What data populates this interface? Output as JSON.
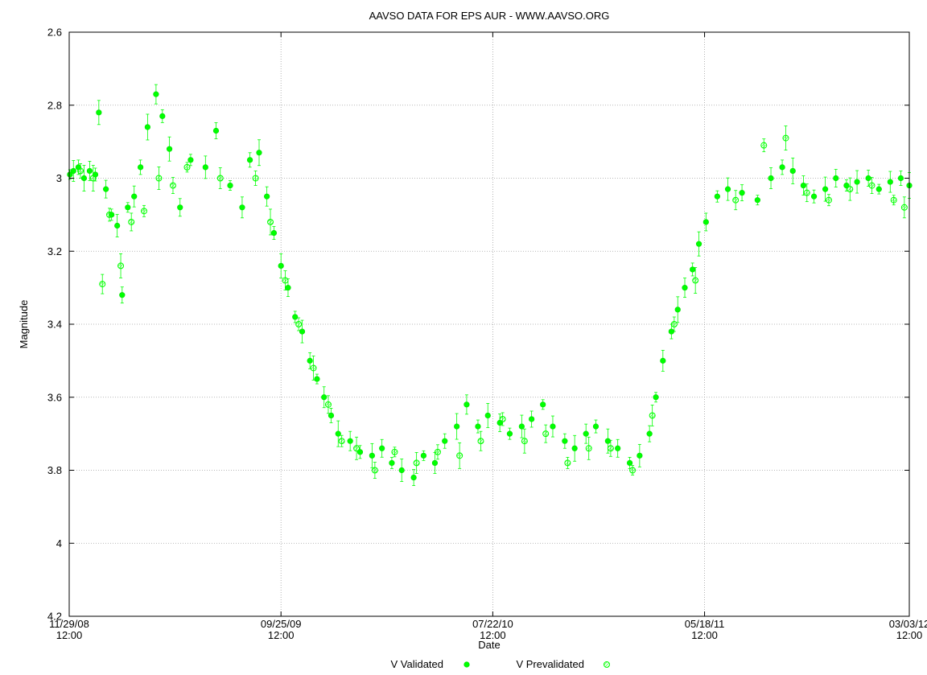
{
  "chart_data": {
    "type": "scatter",
    "title": "AAVSO DATA FOR EPS AUR - WWW.AAVSO.ORG",
    "xlabel": "Date",
    "ylabel": "Magnitude",
    "ylim": [
      4.2,
      2.6
    ],
    "y_inverted": true,
    "grid": true,
    "legend_position": "bottom-center",
    "x_range": [
      "2008-11-29T12:00",
      "2012-03-03T12:00"
    ],
    "x_ticks": [
      {
        "date": "2008-11-29T12:00",
        "line1": "11/29/08",
        "line2": "12:00"
      },
      {
        "date": "2009-09-25T12:00",
        "line1": "09/25/09",
        "line2": "12:00"
      },
      {
        "date": "2010-07-22T12:00",
        "line1": "07/22/10",
        "line2": "12:00"
      },
      {
        "date": "2011-05-18T12:00",
        "line1": "05/18/11",
        "line2": "12:00"
      },
      {
        "date": "2012-03-03T12:00",
        "line1": "03/03/12",
        "line2": "12:00"
      }
    ],
    "y_ticks": [
      "2.6",
      "2.8",
      "3",
      "3.2",
      "3.4",
      "3.6",
      "3.8",
      "4",
      "4.2"
    ],
    "series": [
      {
        "name": "V Validated",
        "color": "#00ff00",
        "marker": "filled-circle",
        "points": [
          [
            "2008-11-30",
            2.99
          ],
          [
            "2008-12-05",
            2.98
          ],
          [
            "2008-12-12",
            2.97
          ],
          [
            "2008-12-20",
            3.0
          ],
          [
            "2008-12-28",
            2.98
          ],
          [
            "2009-01-05",
            2.99
          ],
          [
            "2009-01-10",
            2.82
          ],
          [
            "2009-01-20",
            3.03
          ],
          [
            "2009-01-28",
            3.1
          ],
          [
            "2009-02-05",
            3.13
          ],
          [
            "2009-02-12",
            3.32
          ],
          [
            "2009-02-20",
            3.08
          ],
          [
            "2009-03-01",
            3.05
          ],
          [
            "2009-03-10",
            2.97
          ],
          [
            "2009-03-20",
            2.86
          ],
          [
            "2009-04-01",
            2.77
          ],
          [
            "2009-04-10",
            2.83
          ],
          [
            "2009-04-20",
            2.92
          ],
          [
            "2009-05-05",
            3.08
          ],
          [
            "2009-05-20",
            2.95
          ],
          [
            "2009-06-10",
            2.97
          ],
          [
            "2009-06-25",
            2.87
          ],
          [
            "2009-07-15",
            3.02
          ],
          [
            "2009-08-01",
            3.08
          ],
          [
            "2009-08-12",
            2.95
          ],
          [
            "2009-08-25",
            2.93
          ],
          [
            "2009-09-05",
            3.05
          ],
          [
            "2009-09-15",
            3.15
          ],
          [
            "2009-09-25",
            3.24
          ],
          [
            "2009-10-05",
            3.3
          ],
          [
            "2009-10-15",
            3.38
          ],
          [
            "2009-10-25",
            3.42
          ],
          [
            "2009-11-05",
            3.5
          ],
          [
            "2009-11-15",
            3.55
          ],
          [
            "2009-11-25",
            3.6
          ],
          [
            "2009-12-05",
            3.65
          ],
          [
            "2009-12-15",
            3.7
          ],
          [
            "2010-01-01",
            3.72
          ],
          [
            "2010-01-15",
            3.75
          ],
          [
            "2010-02-01",
            3.76
          ],
          [
            "2010-02-15",
            3.74
          ],
          [
            "2010-03-01",
            3.78
          ],
          [
            "2010-03-15",
            3.8
          ],
          [
            "2010-04-01",
            3.82
          ],
          [
            "2010-04-15",
            3.76
          ],
          [
            "2010-05-01",
            3.78
          ],
          [
            "2010-05-15",
            3.72
          ],
          [
            "2010-06-01",
            3.68
          ],
          [
            "2010-06-15",
            3.62
          ],
          [
            "2010-07-01",
            3.68
          ],
          [
            "2010-07-15",
            3.65
          ],
          [
            "2010-08-01",
            3.67
          ],
          [
            "2010-08-15",
            3.7
          ],
          [
            "2010-09-01",
            3.68
          ],
          [
            "2010-09-15",
            3.66
          ],
          [
            "2010-10-01",
            3.62
          ],
          [
            "2010-10-15",
            3.68
          ],
          [
            "2010-11-01",
            3.72
          ],
          [
            "2010-11-15",
            3.74
          ],
          [
            "2010-12-01",
            3.7
          ],
          [
            "2010-12-15",
            3.68
          ],
          [
            "2011-01-01",
            3.72
          ],
          [
            "2011-01-15",
            3.74
          ],
          [
            "2011-02-01",
            3.78
          ],
          [
            "2011-02-15",
            3.76
          ],
          [
            "2011-03-01",
            3.7
          ],
          [
            "2011-03-10",
            3.6
          ],
          [
            "2011-03-20",
            3.5
          ],
          [
            "2011-04-01",
            3.42
          ],
          [
            "2011-04-10",
            3.36
          ],
          [
            "2011-04-20",
            3.3
          ],
          [
            "2011-05-01",
            3.25
          ],
          [
            "2011-05-10",
            3.18
          ],
          [
            "2011-05-20",
            3.12
          ],
          [
            "2011-06-05",
            3.05
          ],
          [
            "2011-06-20",
            3.03
          ],
          [
            "2011-07-10",
            3.04
          ],
          [
            "2011-08-01",
            3.06
          ],
          [
            "2011-08-20",
            3.0
          ],
          [
            "2011-09-05",
            2.97
          ],
          [
            "2011-09-20",
            2.98
          ],
          [
            "2011-10-05",
            3.02
          ],
          [
            "2011-10-20",
            3.05
          ],
          [
            "2011-11-05",
            3.03
          ],
          [
            "2011-11-20",
            3.0
          ],
          [
            "2011-12-05",
            3.02
          ],
          [
            "2011-12-20",
            3.01
          ],
          [
            "2012-01-05",
            3.0
          ],
          [
            "2012-01-20",
            3.03
          ],
          [
            "2012-02-05",
            3.01
          ],
          [
            "2012-02-20",
            3.0
          ],
          [
            "2012-03-03",
            3.02
          ]
        ]
      },
      {
        "name": "V Prevalidated",
        "color": "#00ff00",
        "marker": "hatched-circle",
        "points": [
          [
            "2008-12-15",
            2.98
          ],
          [
            "2009-01-02",
            3.0
          ],
          [
            "2009-01-15",
            3.29
          ],
          [
            "2009-01-25",
            3.1
          ],
          [
            "2009-02-10",
            3.24
          ],
          [
            "2009-02-25",
            3.12
          ],
          [
            "2009-03-15",
            3.09
          ],
          [
            "2009-04-05",
            3.0
          ],
          [
            "2009-04-25",
            3.02
          ],
          [
            "2009-05-15",
            2.97
          ],
          [
            "2009-07-01",
            3.0
          ],
          [
            "2009-08-20",
            3.0
          ],
          [
            "2009-09-10",
            3.12
          ],
          [
            "2009-10-01",
            3.28
          ],
          [
            "2009-10-20",
            3.4
          ],
          [
            "2009-11-10",
            3.52
          ],
          [
            "2009-12-01",
            3.62
          ],
          [
            "2009-12-20",
            3.72
          ],
          [
            "2010-01-10",
            3.74
          ],
          [
            "2010-02-05",
            3.8
          ],
          [
            "2010-03-05",
            3.75
          ],
          [
            "2010-04-05",
            3.78
          ],
          [
            "2010-05-05",
            3.75
          ],
          [
            "2010-06-05",
            3.76
          ],
          [
            "2010-07-05",
            3.72
          ],
          [
            "2010-08-05",
            3.66
          ],
          [
            "2010-09-05",
            3.72
          ],
          [
            "2010-10-05",
            3.7
          ],
          [
            "2010-11-05",
            3.78
          ],
          [
            "2010-12-05",
            3.74
          ],
          [
            "2011-01-05",
            3.74
          ],
          [
            "2011-02-05",
            3.8
          ],
          [
            "2011-03-05",
            3.65
          ],
          [
            "2011-04-05",
            3.4
          ],
          [
            "2011-05-05",
            3.28
          ],
          [
            "2011-07-01",
            3.06
          ],
          [
            "2011-08-10",
            2.91
          ],
          [
            "2011-09-10",
            2.89
          ],
          [
            "2011-10-10",
            3.04
          ],
          [
            "2011-11-10",
            3.06
          ],
          [
            "2011-12-10",
            3.03
          ],
          [
            "2012-01-10",
            3.02
          ],
          [
            "2012-02-10",
            3.06
          ],
          [
            "2012-02-25",
            3.08
          ]
        ]
      }
    ]
  }
}
